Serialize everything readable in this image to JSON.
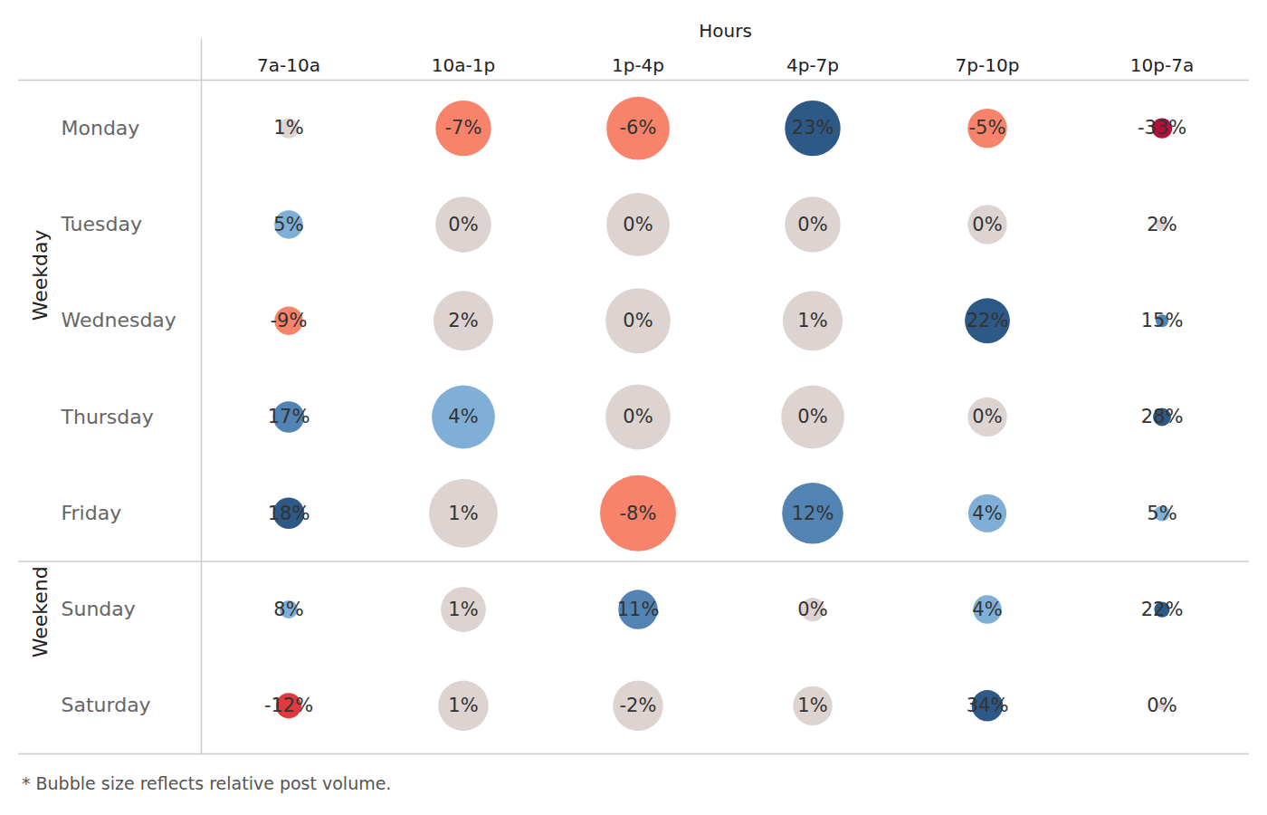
{
  "chart_data": {
    "type": "bubble_grid",
    "x_title": "Hours",
    "columns": [
      "7a-10a",
      "10a-1p",
      "1p-4p",
      "4p-7p",
      "7p-10p",
      "10p-7a"
    ],
    "groups": [
      {
        "name": "Weekday",
        "rows": [
          "Monday",
          "Tuesday",
          "Wednesday",
          "Thursday",
          "Friday"
        ]
      },
      {
        "name": "Weekend",
        "rows": [
          "Sunday",
          "Saturday"
        ]
      }
    ],
    "rows": [
      {
        "name": "Monday",
        "values": [
          1,
          -7,
          -6,
          23,
          -5,
          -33
        ],
        "value_labels": [
          "1%",
          "-7%",
          "-6%",
          "23%",
          "-5%",
          "-33%"
        ],
        "sizes": [
          5,
          38,
          49,
          38,
          19,
          5
        ],
        "colors": [
          "#ddd4d2",
          "#f7836a",
          "#f7836a",
          "#2c5985",
          "#f7836a",
          "#b5103c"
        ]
      },
      {
        "name": "Tuesday",
        "values": [
          5,
          0,
          0,
          0,
          0,
          2
        ],
        "value_labels": [
          "5%",
          "0%",
          "0%",
          "0%",
          "0%",
          "2%"
        ],
        "sizes": [
          10,
          38,
          49,
          38,
          19,
          2
        ],
        "colors": [
          "#7fafd6",
          "#ddd4d2",
          "#ddd4d2",
          "#ddd4d2",
          "#ddd4d2",
          "#ddd4d2"
        ]
      },
      {
        "name": "Wednesday",
        "values": [
          -9,
          2,
          0,
          1,
          22,
          15
        ],
        "value_labels": [
          "-9%",
          "2%",
          "0%",
          "1%",
          "22%",
          "15%"
        ],
        "sizes": [
          10,
          44,
          52,
          44,
          25,
          2
        ],
        "colors": [
          "#f7836a",
          "#ddd4d2",
          "#ddd4d2",
          "#ddd4d2",
          "#2c5985",
          "#5183b3"
        ]
      },
      {
        "name": "Thursday",
        "values": [
          17,
          4,
          0,
          0,
          0,
          28
        ],
        "value_labels": [
          "17%",
          "4%",
          "0%",
          "0%",
          "0%",
          "28%"
        ],
        "sizes": [
          12,
          49,
          52,
          49,
          19,
          4
        ],
        "colors": [
          "#5183b3",
          "#7fafd6",
          "#ddd4d2",
          "#ddd4d2",
          "#ddd4d2",
          "#2c5985"
        ]
      },
      {
        "name": "Friday",
        "values": [
          18,
          1,
          -8,
          12,
          4,
          5
        ],
        "value_labels": [
          "18%",
          "1%",
          "-8%",
          "12%",
          "4%",
          "5%"
        ],
        "sizes": [
          12,
          58,
          71,
          46,
          18,
          3
        ],
        "colors": [
          "#2c5985",
          "#ddd4d2",
          "#f7836a",
          "#5183b3",
          "#7fafd6",
          "#7fafd6"
        ]
      },
      {
        "name": "Sunday",
        "values": [
          8,
          1,
          11,
          0,
          4,
          22
        ],
        "value_labels": [
          "8%",
          "1%",
          "11%",
          "0%",
          "4%",
          "22%"
        ],
        "sizes": [
          4,
          25,
          19,
          7,
          10,
          3
        ],
        "colors": [
          "#7fafd6",
          "#ddd4d2",
          "#5183b3",
          "#ddd4d2",
          "#7fafd6",
          "#2c5985"
        ]
      },
      {
        "name": "Saturday",
        "values": [
          -12,
          1,
          -2,
          1,
          34,
          0
        ],
        "value_labels": [
          "-12%",
          "1%",
          "-2%",
          "1%",
          "34%",
          "0%"
        ],
        "sizes": [
          8,
          31,
          31,
          19,
          12,
          1
        ],
        "colors": [
          "#e03a3e",
          "#ddd4d2",
          "#ddd4d2",
          "#ddd4d2",
          "#2c5985",
          "#ddd4d2"
        ]
      }
    ],
    "data_labels": true,
    "footnote": "* Bubble size reflects relative post volume."
  }
}
